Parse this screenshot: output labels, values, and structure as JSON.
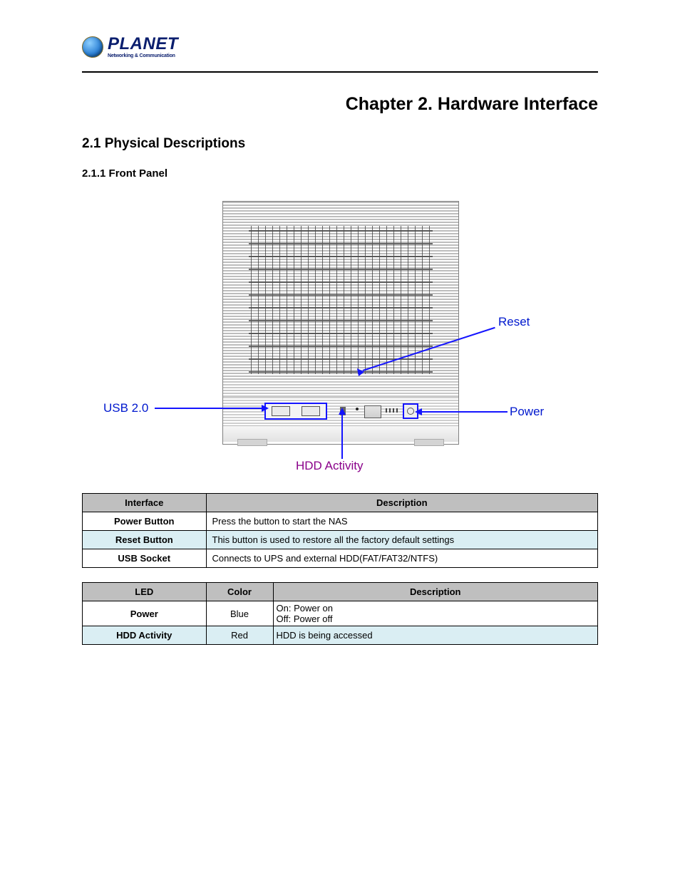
{
  "logo": {
    "brand": "PLANET",
    "tagline": "Networking & Communication"
  },
  "titles": {
    "chapter": "Chapter 2.    Hardware Interface",
    "section": "2.1 Physical Descriptions",
    "subsection": "2.1.1 Front Panel"
  },
  "diagram": {
    "labels": {
      "reset": "Reset",
      "usb": "USB 2.0",
      "power": "Power",
      "hdd": "HDD Activity"
    },
    "colors": {
      "callout_line": "#1414ff",
      "label_blue": "#0018ce",
      "label_purple": "#8a008a",
      "device_border": "#808080"
    }
  },
  "interface_table": {
    "headers": [
      "Interface",
      "Description"
    ],
    "rows": [
      {
        "iface": "Power Button",
        "desc": "Press the button to start the NAS",
        "alt": false
      },
      {
        "iface": "Reset Button",
        "desc": "This button is used to restore all the factory default settings",
        "alt": true
      },
      {
        "iface": "USB Socket",
        "desc": "Connects to UPS and external HDD(FAT/FAT32/NTFS)",
        "alt": false
      }
    ]
  },
  "led_table": {
    "headers": [
      "LED",
      "Color",
      "Description"
    ],
    "rows": [
      {
        "led": "Power",
        "color": "Blue",
        "desc": "On: Power on\nOff: Power off",
        "alt": false
      },
      {
        "led": "HDD Activity",
        "color": "Red",
        "desc": "HDD is being accessed",
        "alt": true
      }
    ]
  }
}
